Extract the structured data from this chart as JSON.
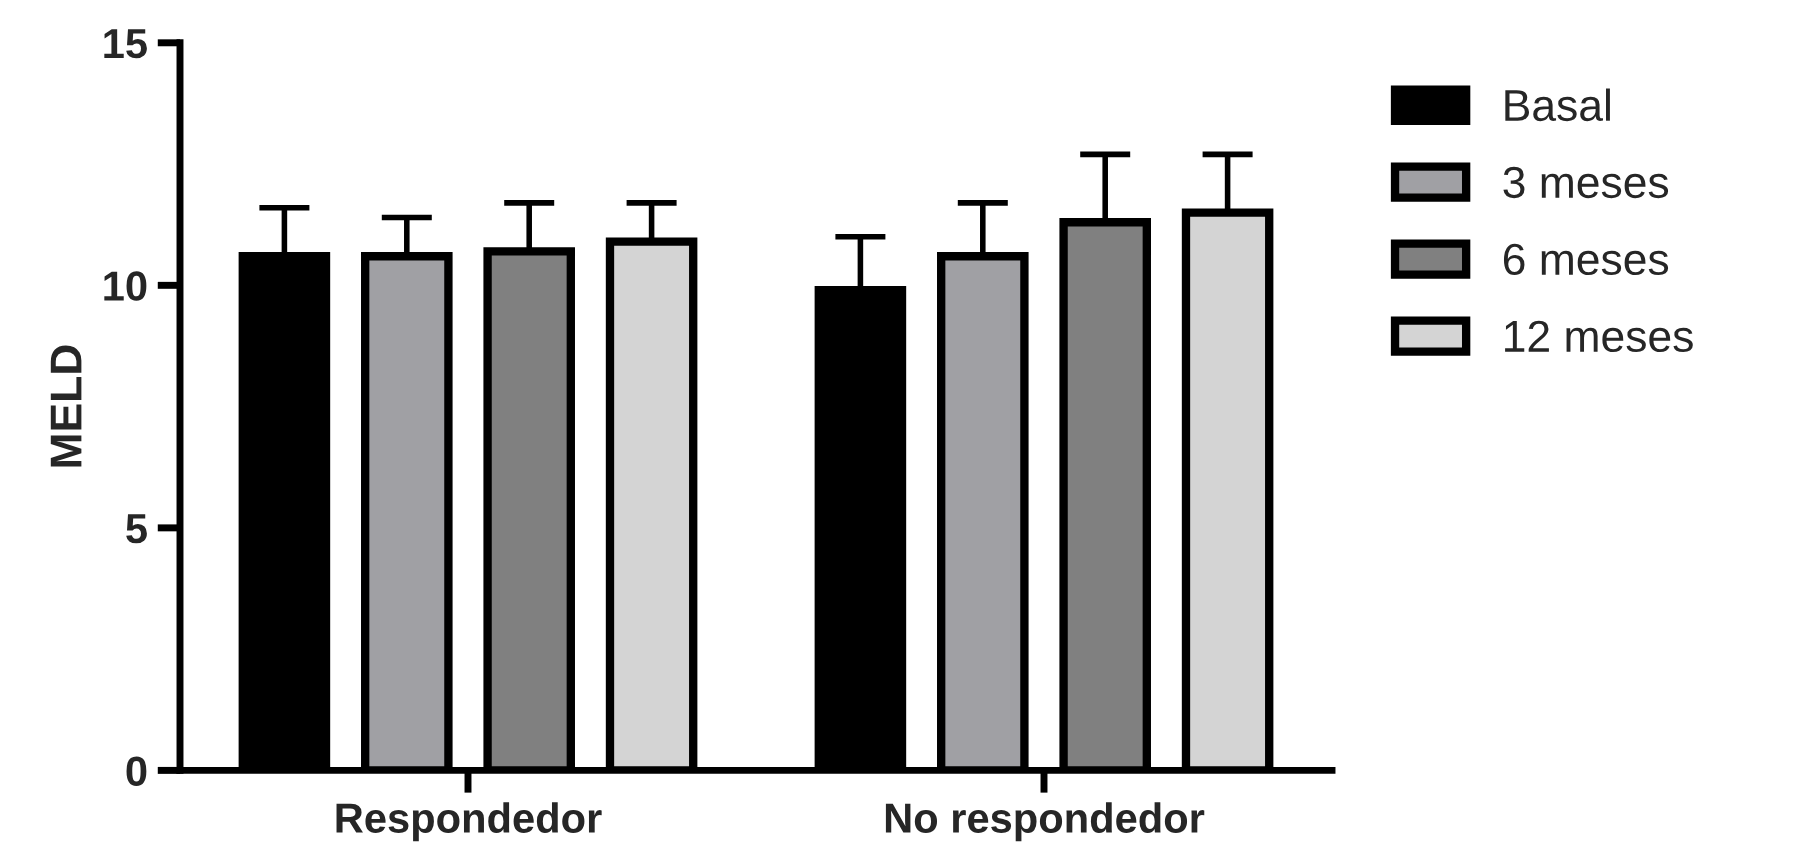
{
  "chart_data": {
    "type": "bar",
    "ylabel": "MELD",
    "categories": [
      "Respondedor",
      "No respondedor"
    ],
    "series": [
      {
        "name": "Basal",
        "color": "#000000",
        "values": [
          10.6,
          9.9
        ],
        "errors": [
          1.0,
          1.1
        ]
      },
      {
        "name": "3 meses",
        "color": "#a0a0a4",
        "values": [
          10.6,
          10.6
        ],
        "errors": [
          0.8,
          1.1
        ]
      },
      {
        "name": "6 meses",
        "color": "#808080",
        "values": [
          10.7,
          11.3
        ],
        "errors": [
          1.0,
          1.4
        ]
      },
      {
        "name": "12 meses",
        "color": "#d4d4d4",
        "values": [
          10.9,
          11.5
        ],
        "errors": [
          0.8,
          1.2
        ]
      }
    ],
    "ylim": [
      0,
      15
    ],
    "yticks": [
      0,
      5,
      10,
      15
    ],
    "grid": false,
    "legend": "right"
  }
}
